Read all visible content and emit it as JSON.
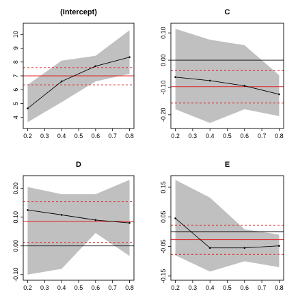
{
  "chart_data": [
    {
      "type": "line",
      "title": "(Intercept)",
      "x": [
        0.2,
        0.4,
        0.6,
        0.8
      ],
      "series": [
        {
          "values": [
            4.65,
            6.6,
            7.7,
            8.35
          ]
        },
        {
          "values": [
            3.65,
            5.1,
            6.6,
            7.15
          ],
          "role": "band_lower"
        },
        {
          "values": [
            6.35,
            8.1,
            8.45,
            10.3
          ],
          "role": "band_upper"
        }
      ],
      "hlines": {
        "estimate": 7.0,
        "ci_lower": 6.35,
        "ci_upper": 7.6,
        "zero": null
      },
      "xlim": [
        0.2,
        0.8
      ],
      "ylim": [
        3.5,
        10.5
      ],
      "xticks": [
        "0.2",
        "0.3",
        "0.4",
        "0.5",
        "0.6",
        "0.7",
        "0.8"
      ],
      "yticks": [
        "4",
        "5",
        "6",
        "7",
        "8",
        "9",
        "10"
      ],
      "xlabel": "",
      "ylabel": "",
      "grid": false
    },
    {
      "type": "line",
      "title": "C",
      "x": [
        0.2,
        0.4,
        0.6,
        0.8
      ],
      "series": [
        {
          "values": [
            -0.062,
            -0.075,
            -0.094,
            -0.125
          ]
        },
        {
          "values": [
            -0.18,
            -0.23,
            -0.18,
            -0.205
          ],
          "role": "band_lower"
        },
        {
          "values": [
            0.115,
            0.075,
            0.055,
            -0.055
          ],
          "role": "band_upper"
        }
      ],
      "hlines": {
        "estimate": -0.097,
        "ci_lower": -0.157,
        "ci_upper": -0.038,
        "zero": 0
      },
      "xlim": [
        0.2,
        0.8
      ],
      "ylim": [
        -0.235,
        0.12
      ],
      "xticks": [
        "0.2",
        "0.3",
        "0.4",
        "0.5",
        "0.6",
        "0.7",
        "0.8"
      ],
      "yticks": [
        "-0.20",
        "-0.10",
        "0.00",
        "0.10"
      ],
      "xlabel": "",
      "ylabel": "",
      "grid": false
    },
    {
      "type": "line",
      "title": "D",
      "x": [
        0.2,
        0.4,
        0.6,
        0.8
      ],
      "series": [
        {
          "values": [
            0.125,
            0.108,
            0.09,
            0.08
          ]
        },
        {
          "values": [
            -0.1,
            -0.08,
            0.045,
            -0.035
          ],
          "role": "band_lower"
        },
        {
          "values": [
            0.205,
            0.18,
            0.18,
            0.23
          ],
          "role": "band_upper"
        }
      ],
      "hlines": {
        "estimate": 0.085,
        "ci_lower": 0.012,
        "ci_upper": 0.155,
        "zero": 0
      },
      "xlim": [
        0.2,
        0.8
      ],
      "ylim": [
        -0.105,
        0.23
      ],
      "xticks": [
        "0.2",
        "0.3",
        "0.4",
        "0.5",
        "0.6",
        "0.7",
        "0.8"
      ],
      "yticks": [
        "-0.10",
        "0.00",
        "0.10",
        "0.20"
      ],
      "xlabel": "",
      "ylabel": "",
      "grid": false
    },
    {
      "type": "line",
      "title": "E",
      "x": [
        0.2,
        0.4,
        0.6,
        0.8
      ],
      "series": [
        {
          "values": [
            0.045,
            -0.055,
            -0.055,
            -0.048
          ]
        },
        {
          "values": [
            -0.08,
            -0.135,
            -0.1,
            -0.12
          ],
          "role": "band_lower"
        },
        {
          "values": [
            0.175,
            0.115,
            0.008,
            -0.01
          ],
          "role": "band_upper"
        }
      ],
      "hlines": {
        "estimate": -0.027,
        "ci_lower": -0.077,
        "ci_upper": 0.022,
        "zero": 0
      },
      "xlim": [
        0.2,
        0.8
      ],
      "ylim": [
        -0.15,
        0.175
      ],
      "xticks": [
        "0.2",
        "0.3",
        "0.4",
        "0.5",
        "0.6",
        "0.7",
        "0.8"
      ],
      "yticks": [
        "-0.15",
        "-0.05",
        "0.05",
        "0.15"
      ],
      "xlabel": "",
      "ylabel": "",
      "grid": false
    }
  ],
  "colors": {
    "band": "#c0c0c0",
    "estimate_line": "#e02020",
    "ci_line": "#e02020",
    "zero_line": "#000000",
    "series_line": "#000000",
    "axes": "#000000"
  }
}
